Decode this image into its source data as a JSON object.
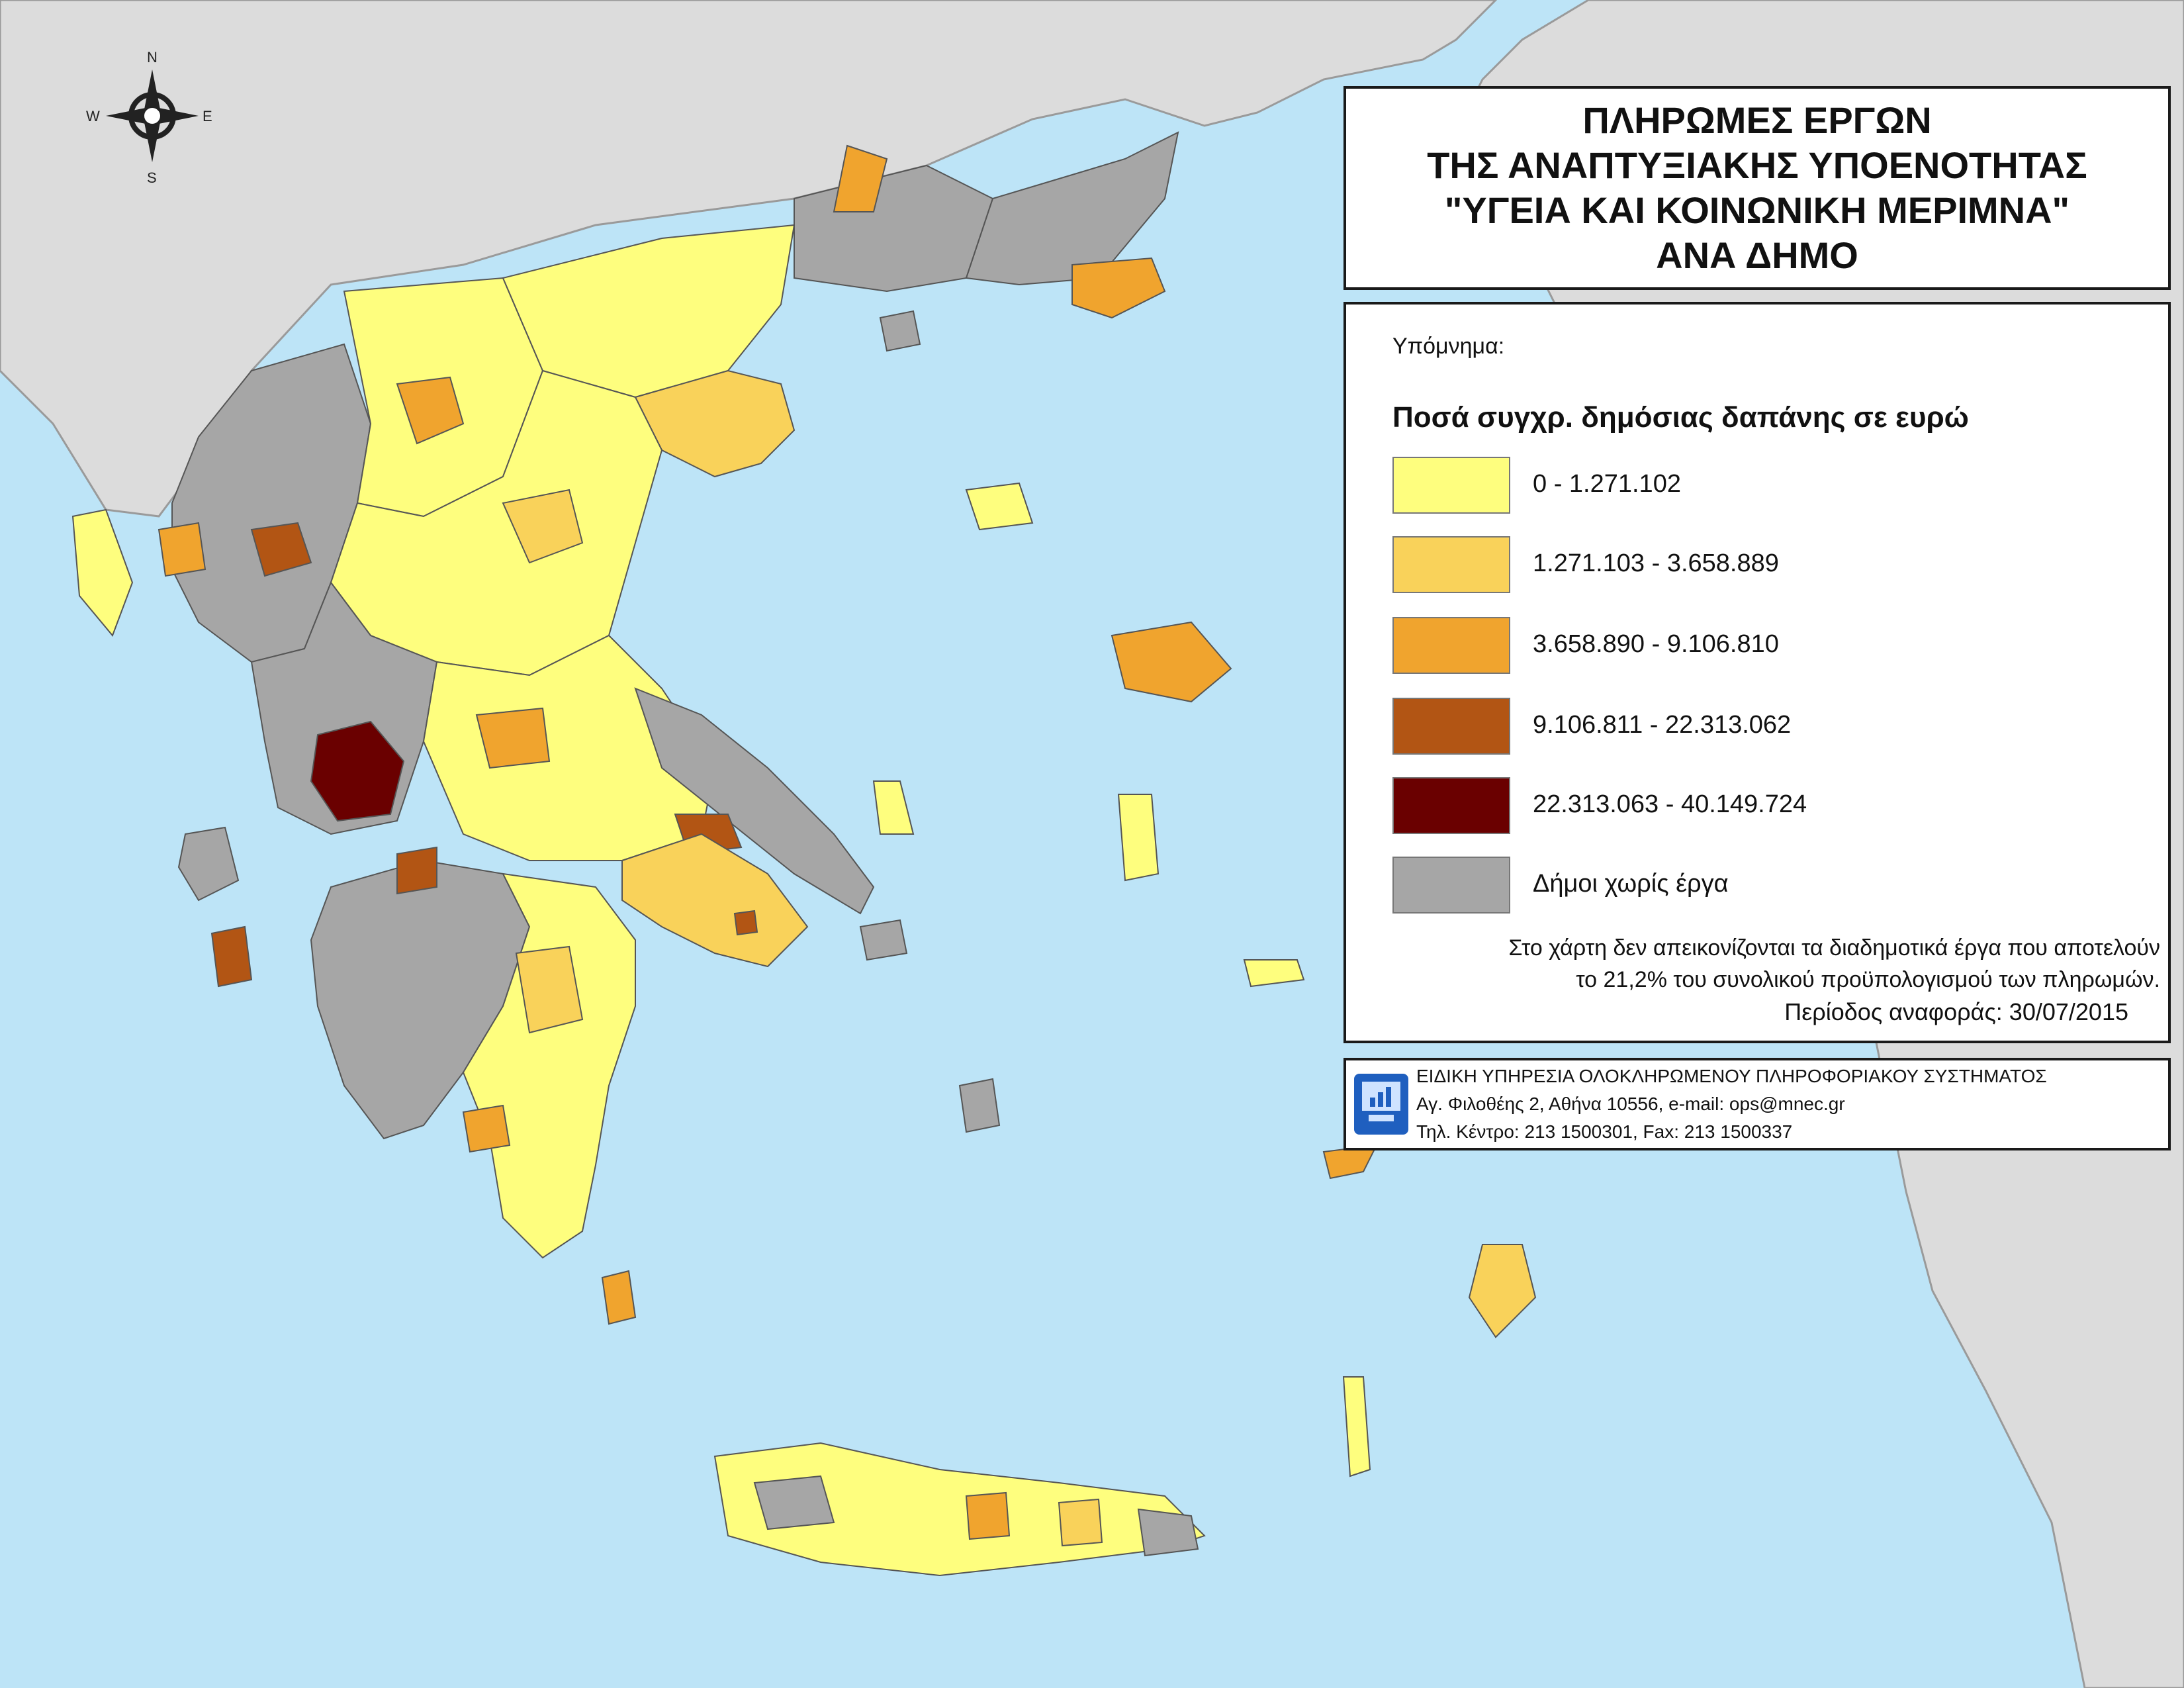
{
  "title": {
    "lines": [
      "ΠΛΗΡΩΜΕΣ ΕΡΓΩΝ",
      "ΤΗΣ ΑΝΑΠΤΥΞΙΑΚΗΣ ΥΠΟΕΝΟΤΗΤΑΣ",
      "\"ΥΓΕΙΑ ΚΑΙ ΚΟΙΝΩΝΙΚΗ ΜΕΡΙΜΝΑ\"",
      "ΑΝΑ ΔΗΜΟ"
    ]
  },
  "compass": {
    "n": "N",
    "s": "S",
    "e": "E",
    "w": "W"
  },
  "legend": {
    "heading": "Υπόμνημα:",
    "subheading": "Ποσά συγχρ. δημόσιας δαπάνης σε ευρώ",
    "classes": [
      {
        "label": "0 - 1.271.102",
        "color": "#fefe7e"
      },
      {
        "label": "1.271.103 - 3.658.889",
        "color": "#f9d25a"
      },
      {
        "label": "3.658.890 - 9.106.810",
        "color": "#f0a42e"
      },
      {
        "label": "9.106.811 - 22.313.062",
        "color": "#b25514"
      },
      {
        "label": "22.313.063 - 40.149.724",
        "color": "#6a0000"
      },
      {
        "label": "Δήμοι χωρίς έργα",
        "color": "#a6a6a6"
      }
    ],
    "note_lines": [
      "Στο χάρτη δεν απεικονίζονται τα διαδημοτικά έργα που αποτελούν",
      "το 21,2% του συνολικού προϋπολογισμού των πληρωμών."
    ],
    "period": "Περίοδος αναφοράς: 30/07/2015"
  },
  "footer": {
    "org": "ΕΙΔΙΚΗ ΥΠΗΡΕΣΙΑ ΟΛΟΚΛΗΡΩΜΕΝΟΥ ΠΛΗΡΟΦΟΡΙΑΚΟΥ ΣΥΣΤΗΜΑΤΟΣ",
    "address": "Αγ. Φιλοθέης 2, Αθήνα 10556, e-mail: ops@mnec.gr",
    "phones": "Τηλ. Κέντρο: 213 1500301, Fax: 213 1500337"
  },
  "map_colors": {
    "sea": "#bde4f7",
    "neighbor_land": "#dcdcdc"
  }
}
